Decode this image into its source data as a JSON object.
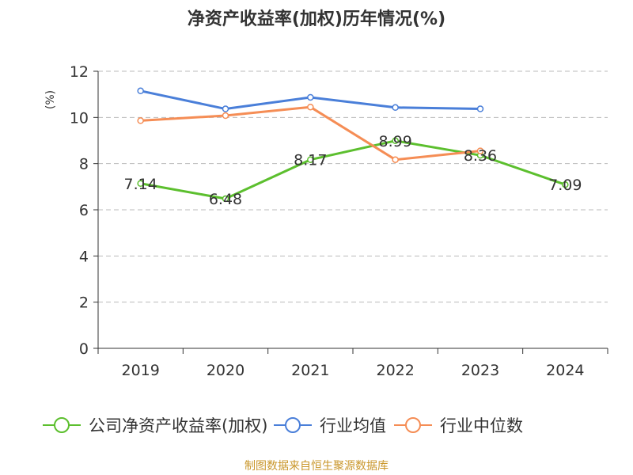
{
  "title": "净资产收益率(加权)历年情况(%)",
  "source": "制图数据来自恒生聚源数据库",
  "chart_data": {
    "type": "line",
    "title": "净资产收益率(加权)历年情况(%)",
    "ylabel": "(%)",
    "ylim": [
      0,
      12
    ],
    "yticks": [
      0,
      2,
      4,
      6,
      8,
      10,
      12
    ],
    "grid": true,
    "legend_position": "bottom",
    "categories": [
      "2019",
      "2020",
      "2021",
      "2022",
      "2023",
      "2024"
    ],
    "series": [
      {
        "name": "公司净资产收益率(加权)",
        "color": "#5cbf2e",
        "values": [
          7.14,
          6.48,
          8.17,
          8.99,
          8.36,
          7.09
        ],
        "labels": [
          "7.14",
          "6.48",
          "8.17",
          "8.99",
          "8.36",
          "7.09"
        ]
      },
      {
        "name": "行业均值",
        "color": "#4a7fd9",
        "values": [
          11.15,
          10.37,
          10.87,
          10.43,
          10.37,
          null
        ]
      },
      {
        "name": "行业中位数",
        "color": "#f58d55",
        "values": [
          9.86,
          10.08,
          10.45,
          8.17,
          8.55,
          null
        ]
      }
    ]
  }
}
